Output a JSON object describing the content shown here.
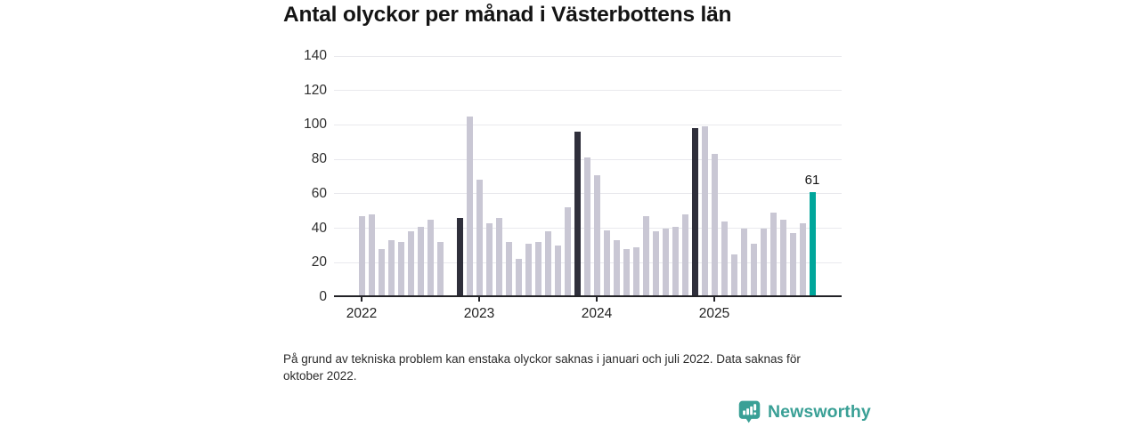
{
  "chart_data": {
    "type": "bar",
    "title": "Antal olyckor per månad i Västerbottens län",
    "xlabel": "",
    "ylabel": "",
    "ylim": [
      0,
      140
    ],
    "yticks": [
      0,
      20,
      40,
      60,
      80,
      100,
      120,
      140
    ],
    "grid": true,
    "legend": "none",
    "colors": {
      "default": "#c9c7d4",
      "highlight": "#2f2f3b",
      "latest": "#00a69b"
    },
    "x_ticks": [
      {
        "label": "2022",
        "month": "2022-01"
      },
      {
        "label": "2023",
        "month": "2023-01"
      },
      {
        "label": "2024",
        "month": "2024-01"
      },
      {
        "label": "2025",
        "month": "2025-01"
      }
    ],
    "annotations": [
      {
        "month": "2025-11",
        "text": "61"
      }
    ],
    "months": [
      {
        "month": "2022-01",
        "value": 47,
        "style": "default"
      },
      {
        "month": "2022-02",
        "value": 48,
        "style": "default"
      },
      {
        "month": "2022-03",
        "value": 28,
        "style": "default"
      },
      {
        "month": "2022-04",
        "value": 33,
        "style": "default"
      },
      {
        "month": "2022-05",
        "value": 32,
        "style": "default"
      },
      {
        "month": "2022-06",
        "value": 38,
        "style": "default"
      },
      {
        "month": "2022-07",
        "value": 41,
        "style": "default"
      },
      {
        "month": "2022-08",
        "value": 45,
        "style": "default"
      },
      {
        "month": "2022-09",
        "value": 32,
        "style": "default"
      },
      {
        "month": "2022-10",
        "value": null,
        "style": "default"
      },
      {
        "month": "2022-11",
        "value": 46,
        "style": "highlight"
      },
      {
        "month": "2022-12",
        "value": 105,
        "style": "default"
      },
      {
        "month": "2023-01",
        "value": 68,
        "style": "default"
      },
      {
        "month": "2023-02",
        "value": 43,
        "style": "default"
      },
      {
        "month": "2023-03",
        "value": 46,
        "style": "default"
      },
      {
        "month": "2023-04",
        "value": 32,
        "style": "default"
      },
      {
        "month": "2023-05",
        "value": 22,
        "style": "default"
      },
      {
        "month": "2023-06",
        "value": 31,
        "style": "default"
      },
      {
        "month": "2023-07",
        "value": 32,
        "style": "default"
      },
      {
        "month": "2023-08",
        "value": 38,
        "style": "default"
      },
      {
        "month": "2023-09",
        "value": 30,
        "style": "default"
      },
      {
        "month": "2023-10",
        "value": 52,
        "style": "default"
      },
      {
        "month": "2023-11",
        "value": 96,
        "style": "highlight"
      },
      {
        "month": "2023-12",
        "value": 81,
        "style": "default"
      },
      {
        "month": "2024-01",
        "value": 71,
        "style": "default"
      },
      {
        "month": "2024-02",
        "value": 39,
        "style": "default"
      },
      {
        "month": "2024-03",
        "value": 33,
        "style": "default"
      },
      {
        "month": "2024-04",
        "value": 28,
        "style": "default"
      },
      {
        "month": "2024-05",
        "value": 29,
        "style": "default"
      },
      {
        "month": "2024-06",
        "value": 47,
        "style": "default"
      },
      {
        "month": "2024-07",
        "value": 38,
        "style": "default"
      },
      {
        "month": "2024-08",
        "value": 40,
        "style": "default"
      },
      {
        "month": "2024-09",
        "value": 41,
        "style": "default"
      },
      {
        "month": "2024-10",
        "value": 48,
        "style": "default"
      },
      {
        "month": "2024-11",
        "value": 98,
        "style": "highlight"
      },
      {
        "month": "2024-12",
        "value": 99,
        "style": "default"
      },
      {
        "month": "2025-01",
        "value": 83,
        "style": "default"
      },
      {
        "month": "2025-02",
        "value": 44,
        "style": "default"
      },
      {
        "month": "2025-03",
        "value": 25,
        "style": "default"
      },
      {
        "month": "2025-04",
        "value": 40,
        "style": "default"
      },
      {
        "month": "2025-05",
        "value": 31,
        "style": "default"
      },
      {
        "month": "2025-06",
        "value": 40,
        "style": "default"
      },
      {
        "month": "2025-07",
        "value": 49,
        "style": "default"
      },
      {
        "month": "2025-08",
        "value": 45,
        "style": "default"
      },
      {
        "month": "2025-09",
        "value": 37,
        "style": "default"
      },
      {
        "month": "2025-10",
        "value": 43,
        "style": "default"
      },
      {
        "month": "2025-11",
        "value": 61,
        "style": "latest"
      }
    ]
  },
  "footnote": "På grund av tekniska problem kan enstaka olyckor saknas i januari och juli 2022. Data saknas för oktober 2022.",
  "brand": {
    "name": "Newsworthy",
    "color": "#3aa096"
  }
}
